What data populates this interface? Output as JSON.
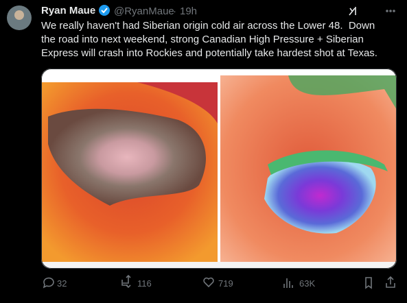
{
  "author": {
    "name": "Ryan Maue",
    "handle": "@RyanMaue",
    "time": "19h"
  },
  "text": [
    "We really haven't had Siberian origin cold air across the Lower 48.  Down",
    "the road into next weekend, strong Canadian High Pressure + Siberian",
    "Express will crash into Rockies and potentially take hardest shot at Texas."
  ],
  "metrics": {
    "replies": "32",
    "reposts": "116",
    "likes": "719",
    "views": "63K"
  }
}
